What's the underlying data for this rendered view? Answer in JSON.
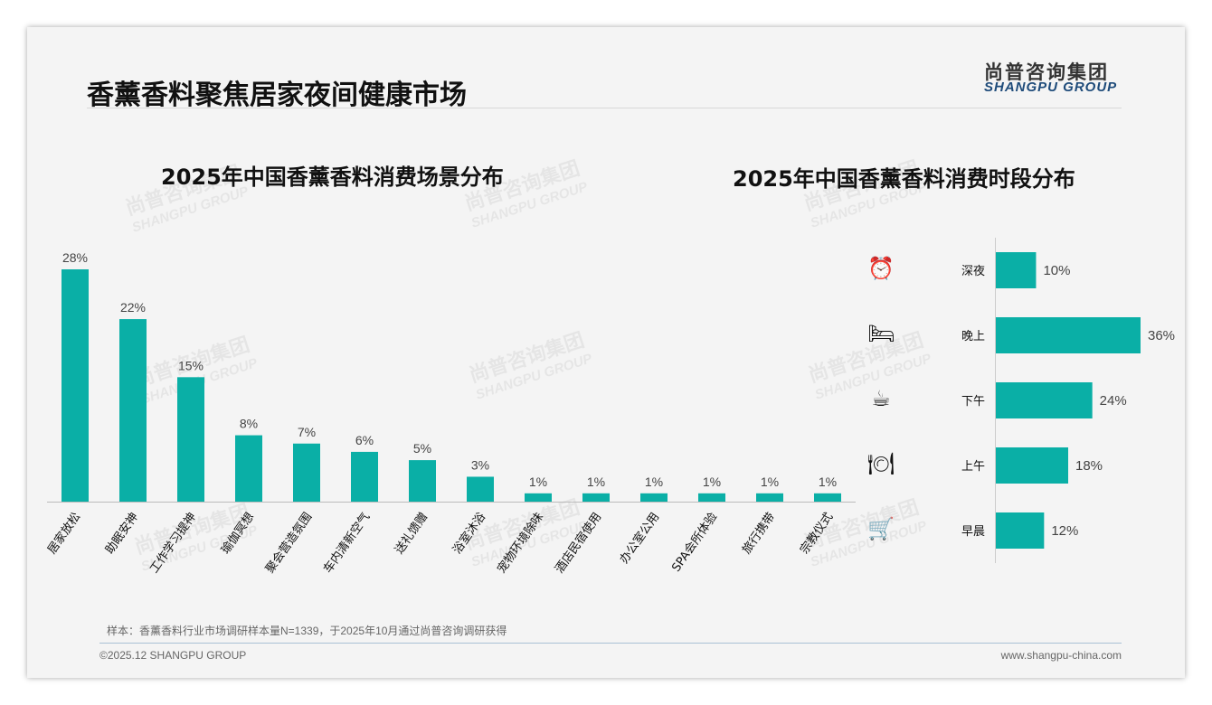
{
  "header": {
    "title": "香薰香料聚焦居家夜间健康市场",
    "logo_cn": "尚普咨询集团",
    "logo_en": "SHANGPU GROUP"
  },
  "watermark": {
    "cn": "尚普咨询集团",
    "en": "SHANGPU GROUP"
  },
  "colors": {
    "bar": "#0aafa6"
  },
  "chart_data": [
    {
      "type": "bar",
      "title": "2025年中国香薰香料消费场景分布",
      "categories": [
        "居家放松",
        "助眠安神",
        "工作学习提神",
        "瑜伽冥想",
        "聚会营造氛围",
        "车内清新空气",
        "送礼馈赠",
        "浴室沐浴",
        "宠物环境除味",
        "酒店民宿使用",
        "办公室公用",
        "SPA会所体验",
        "旅行携带",
        "宗教仪式"
      ],
      "values": [
        28,
        22,
        15,
        8,
        7,
        6,
        5,
        3,
        1,
        1,
        1,
        1,
        1,
        1
      ],
      "labels": [
        "28%",
        "22%",
        "15%",
        "8%",
        "7%",
        "6%",
        "5%",
        "3%",
        "1%",
        "1%",
        "1%",
        "1%",
        "1%",
        "1%"
      ],
      "unit": "%",
      "ylim": [
        0,
        30
      ]
    },
    {
      "type": "bar",
      "orientation": "horizontal",
      "title": "2025年中国香薰香料消费时段分布",
      "categories": [
        "深夜",
        "晚上",
        "下午",
        "上午",
        "早晨"
      ],
      "icons": [
        "alarm-clock-icon",
        "bed-icon",
        "coffee-mug-icon",
        "plate-cutlery-icon",
        "shopping-cart-icon"
      ],
      "values": [
        10,
        36,
        24,
        18,
        12
      ],
      "labels": [
        "10%",
        "36%",
        "24%",
        "18%",
        "12%"
      ],
      "unit": "%",
      "xlim": [
        0,
        40
      ]
    }
  ],
  "footer": {
    "note": "样本：香薰香料行业市场调研样本量N=1339，于2025年10月通过尚普咨询调研获得",
    "copyright": "©2025.12 SHANGPU GROUP",
    "website": "www.shangpu-china.com"
  }
}
